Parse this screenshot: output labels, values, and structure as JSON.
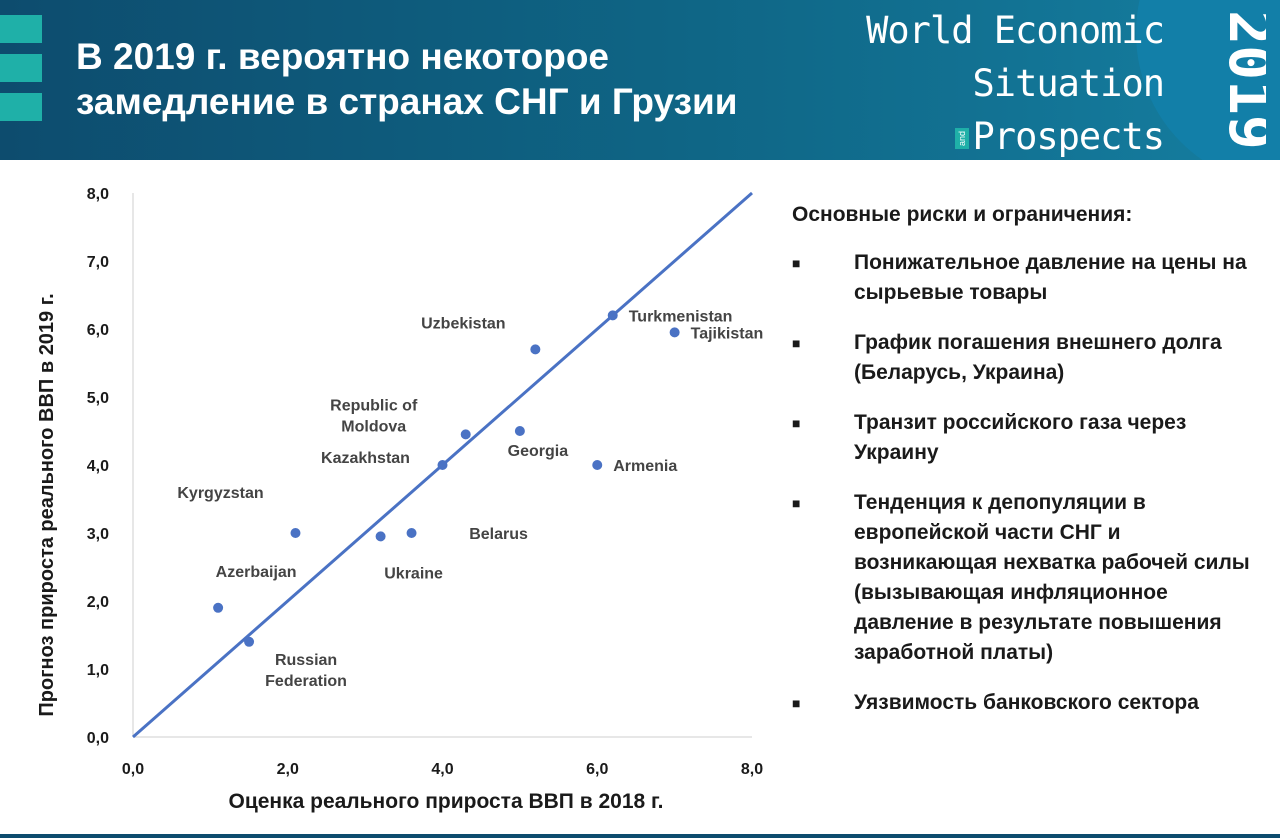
{
  "header": {
    "title_line1": "В 2019 г. вероятно некоторое",
    "title_line2": "замедление в странах СНГ и Грузии",
    "logo": {
      "line1": "World Economic",
      "line2": "Situation",
      "and": "and",
      "line3": "Prospects",
      "year": "2019"
    }
  },
  "colors": {
    "header": "#0f6686",
    "accent": "#1fb0a8",
    "series": "#4a72c4",
    "line": "#4a72c4"
  },
  "chart_data": {
    "type": "scatter",
    "xlabel": "Оценка реального прироста ВВП в 2018 г.",
    "ylabel": "Прогноз прироста реального ВВП в 2019 г.",
    "xlim": [
      0,
      8
    ],
    "ylim": [
      0,
      8
    ],
    "x_ticks": [
      "0,0",
      "2,0",
      "4,0",
      "6,0",
      "8,0"
    ],
    "y_ticks": [
      "0,0",
      "1,0",
      "2,0",
      "3,0",
      "4,0",
      "5,0",
      "6,0",
      "7,0",
      "8,0"
    ],
    "reference_line": {
      "from": [
        0,
        0
      ],
      "to": [
        8,
        8
      ]
    },
    "grid": false,
    "points": [
      {
        "label": "Tajikistan",
        "x": 7.0,
        "y": 5.95
      },
      {
        "label": "Uzbekistan",
        "x": 5.2,
        "y": 5.7
      },
      {
        "label": "Turkmenistan",
        "x": 6.2,
        "y": 6.2
      },
      {
        "label": "Georgia",
        "x": 5.0,
        "y": 4.5
      },
      {
        "label": "Armenia",
        "x": 6.0,
        "y": 4.0
      },
      {
        "label": "Republic of Moldova",
        "x": 4.3,
        "y": 4.45
      },
      {
        "label": "Kazakhstan",
        "x": 4.0,
        "y": 4.0
      },
      {
        "label": "Belarus",
        "x": 3.6,
        "y": 3.0
      },
      {
        "label": "Ukraine",
        "x": 3.2,
        "y": 2.95
      },
      {
        "label": "Kyrgyzstan",
        "x": 2.1,
        "y": 3.0
      },
      {
        "label": "Azerbaijan",
        "x": 1.1,
        "y": 1.9
      },
      {
        "label": "Russian Federation",
        "x": 1.5,
        "y": 1.4
      }
    ]
  },
  "risks": {
    "heading": "Основные риски и ограничения:",
    "bullet_symbol": "■",
    "items": [
      "Понижательное давление на цены на сырьевые товары",
      "График погашения внешнего долга (Беларусь, Украина)",
      "Транзит российского газа через Украину",
      "Тенденция к депопуляции в европейской части СНГ и возникающая нехватка рабочей силы (вызывающая инфляционное давление в результате повышения заработной платы)",
      "Уязвимость банковского сектора"
    ]
  }
}
